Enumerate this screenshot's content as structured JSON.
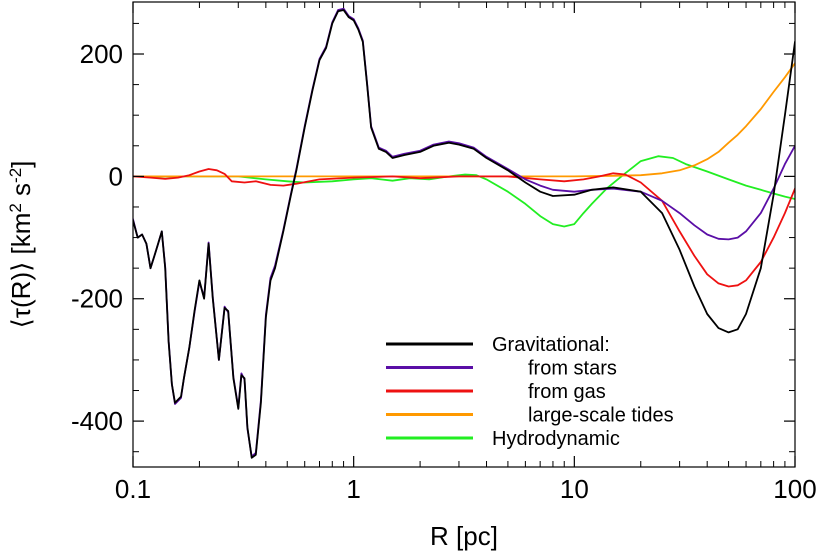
{
  "chart_data": {
    "type": "line",
    "xscale": "log",
    "xlim": [
      0.1,
      100
    ],
    "ylim": [
      -475,
      285
    ],
    "xlabel": "R [pc]",
    "ylabel_parts": [
      "⟨τ(R)⟩ [km",
      "2",
      " s",
      "-2",
      "]"
    ],
    "ylabel": "⟨τ(R)⟩ [km2 s-2]",
    "xticks": [
      {
        "value": 0.1,
        "label": "0.1"
      },
      {
        "value": 1,
        "label": "1"
      },
      {
        "value": 10,
        "label": "10"
      },
      {
        "value": 100,
        "label": "100"
      }
    ],
    "yticks": [
      {
        "value": -400,
        "label": "-400"
      },
      {
        "value": -200,
        "label": "-200"
      },
      {
        "value": 0,
        "label": "0"
      },
      {
        "value": 200,
        "label": "200"
      }
    ],
    "grid": false,
    "legend_position": "bottom-right",
    "series": [
      {
        "name": "Gravitational:",
        "color": "#000000",
        "points": [
          [
            0.1,
            -72
          ],
          [
            0.105,
            -100
          ],
          [
            0.11,
            -95
          ],
          [
            0.115,
            -110
          ],
          [
            0.12,
            -150
          ],
          [
            0.125,
            -130
          ],
          [
            0.13,
            -110
          ],
          [
            0.135,
            -90
          ],
          [
            0.14,
            -150
          ],
          [
            0.145,
            -270
          ],
          [
            0.15,
            -340
          ],
          [
            0.155,
            -370
          ],
          [
            0.165,
            -360
          ],
          [
            0.17,
            -330
          ],
          [
            0.18,
            -280
          ],
          [
            0.19,
            -220
          ],
          [
            0.2,
            -170
          ],
          [
            0.21,
            -200
          ],
          [
            0.22,
            -110
          ],
          [
            0.23,
            -200
          ],
          [
            0.245,
            -300
          ],
          [
            0.26,
            -215
          ],
          [
            0.27,
            -220
          ],
          [
            0.285,
            -330
          ],
          [
            0.3,
            -380
          ],
          [
            0.31,
            -325
          ],
          [
            0.32,
            -330
          ],
          [
            0.33,
            -410
          ],
          [
            0.345,
            -460
          ],
          [
            0.36,
            -455
          ],
          [
            0.38,
            -370
          ],
          [
            0.4,
            -230
          ],
          [
            0.42,
            -170
          ],
          [
            0.44,
            -150
          ],
          [
            0.48,
            -90
          ],
          [
            0.52,
            -30
          ],
          [
            0.55,
            10
          ],
          [
            0.6,
            80
          ],
          [
            0.65,
            140
          ],
          [
            0.7,
            190
          ],
          [
            0.75,
            210
          ],
          [
            0.8,
            250
          ],
          [
            0.85,
            270
          ],
          [
            0.9,
            272
          ],
          [
            0.95,
            260
          ],
          [
            1.0,
            255
          ],
          [
            1.05,
            240
          ],
          [
            1.1,
            220
          ],
          [
            1.15,
            150
          ],
          [
            1.2,
            80
          ],
          [
            1.3,
            45
          ],
          [
            1.4,
            40
          ],
          [
            1.5,
            30
          ],
          [
            1.7,
            35
          ],
          [
            2.0,
            40
          ],
          [
            2.3,
            50
          ],
          [
            2.7,
            55
          ],
          [
            3.0,
            52
          ],
          [
            3.5,
            45
          ],
          [
            4.0,
            30
          ],
          [
            5.0,
            10
          ],
          [
            6.0,
            -10
          ],
          [
            7.0,
            -25
          ],
          [
            8.0,
            -32
          ],
          [
            10.0,
            -30
          ],
          [
            12.0,
            -22
          ],
          [
            15.0,
            -18
          ],
          [
            20.0,
            -25
          ],
          [
            25.0,
            -60
          ],
          [
            30.0,
            -120
          ],
          [
            35.0,
            -180
          ],
          [
            40.0,
            -225
          ],
          [
            45.0,
            -248
          ],
          [
            50.0,
            -255
          ],
          [
            55.0,
            -250
          ],
          [
            60.0,
            -225
          ],
          [
            70.0,
            -150
          ],
          [
            80.0,
            -30
          ],
          [
            90.0,
            100
          ],
          [
            100.0,
            220
          ]
        ]
      },
      {
        "name": "from stars",
        "color": "#5a0ea6",
        "points": [
          [
            0.1,
            -70
          ],
          [
            0.105,
            -100
          ],
          [
            0.11,
            -95
          ],
          [
            0.115,
            -110
          ],
          [
            0.12,
            -150
          ],
          [
            0.125,
            -130
          ],
          [
            0.13,
            -110
          ],
          [
            0.135,
            -90
          ],
          [
            0.14,
            -148
          ],
          [
            0.145,
            -268
          ],
          [
            0.15,
            -340
          ],
          [
            0.155,
            -372
          ],
          [
            0.165,
            -362
          ],
          [
            0.17,
            -330
          ],
          [
            0.18,
            -280
          ],
          [
            0.19,
            -222
          ],
          [
            0.2,
            -172
          ],
          [
            0.21,
            -198
          ],
          [
            0.22,
            -108
          ],
          [
            0.23,
            -198
          ],
          [
            0.245,
            -300
          ],
          [
            0.26,
            -213
          ],
          [
            0.27,
            -222
          ],
          [
            0.285,
            -328
          ],
          [
            0.3,
            -378
          ],
          [
            0.31,
            -322
          ],
          [
            0.32,
            -332
          ],
          [
            0.33,
            -412
          ],
          [
            0.345,
            -458
          ],
          [
            0.36,
            -452
          ],
          [
            0.38,
            -366
          ],
          [
            0.4,
            -226
          ],
          [
            0.42,
            -166
          ],
          [
            0.44,
            -146
          ],
          [
            0.48,
            -88
          ],
          [
            0.52,
            -28
          ],
          [
            0.55,
            12
          ],
          [
            0.6,
            82
          ],
          [
            0.65,
            142
          ],
          [
            0.7,
            192
          ],
          [
            0.75,
            212
          ],
          [
            0.8,
            252
          ],
          [
            0.85,
            272
          ],
          [
            0.9,
            274
          ],
          [
            0.95,
            262
          ],
          [
            1.0,
            257
          ],
          [
            1.05,
            242
          ],
          [
            1.1,
            222
          ],
          [
            1.15,
            152
          ],
          [
            1.2,
            82
          ],
          [
            1.3,
            47
          ],
          [
            1.4,
            42
          ],
          [
            1.5,
            32
          ],
          [
            1.7,
            37
          ],
          [
            2.0,
            42
          ],
          [
            2.3,
            52
          ],
          [
            2.7,
            57
          ],
          [
            3.0,
            54
          ],
          [
            3.5,
            47
          ],
          [
            4.0,
            32
          ],
          [
            5.0,
            12
          ],
          [
            6.0,
            -5
          ],
          [
            7.0,
            -15
          ],
          [
            8.0,
            -22
          ],
          [
            10.0,
            -25
          ],
          [
            12.0,
            -22
          ],
          [
            15.0,
            -20
          ],
          [
            20.0,
            -25
          ],
          [
            25.0,
            -40
          ],
          [
            30.0,
            -60
          ],
          [
            35.0,
            -80
          ],
          [
            40.0,
            -95
          ],
          [
            45.0,
            -102
          ],
          [
            50.0,
            -103
          ],
          [
            55.0,
            -100
          ],
          [
            60.0,
            -90
          ],
          [
            70.0,
            -60
          ],
          [
            80.0,
            -20
          ],
          [
            90.0,
            20
          ],
          [
            100.0,
            50
          ]
        ]
      },
      {
        "name": "from gas",
        "color": "#ee1111",
        "points": [
          [
            0.1,
            0
          ],
          [
            0.12,
            -2
          ],
          [
            0.14,
            -4
          ],
          [
            0.16,
            -2
          ],
          [
            0.18,
            2
          ],
          [
            0.2,
            8
          ],
          [
            0.22,
            12
          ],
          [
            0.24,
            10
          ],
          [
            0.26,
            4
          ],
          [
            0.28,
            -8
          ],
          [
            0.32,
            -10
          ],
          [
            0.36,
            -8
          ],
          [
            0.42,
            -14
          ],
          [
            0.48,
            -15
          ],
          [
            0.55,
            -12
          ],
          [
            0.7,
            -5
          ],
          [
            1.0,
            -2
          ],
          [
            1.5,
            0
          ],
          [
            2.0,
            -3
          ],
          [
            3.0,
            0
          ],
          [
            5.0,
            0
          ],
          [
            7.0,
            -5
          ],
          [
            9.0,
            -8
          ],
          [
            11.0,
            -5
          ],
          [
            13.0,
            0
          ],
          [
            15.0,
            5
          ],
          [
            17.0,
            3
          ],
          [
            20.0,
            -10
          ],
          [
            25.0,
            -40
          ],
          [
            30.0,
            -90
          ],
          [
            35.0,
            -130
          ],
          [
            40.0,
            -160
          ],
          [
            45.0,
            -175
          ],
          [
            50.0,
            -180
          ],
          [
            55.0,
            -178
          ],
          [
            60.0,
            -170
          ],
          [
            70.0,
            -140
          ],
          [
            80.0,
            -100
          ],
          [
            90.0,
            -60
          ],
          [
            100.0,
            -20
          ]
        ]
      },
      {
        "name": "large-scale tides",
        "color": "#ff9900",
        "points": [
          [
            0.1,
            0
          ],
          [
            1.0,
            0
          ],
          [
            5.0,
            0
          ],
          [
            10.0,
            0
          ],
          [
            15.0,
            1
          ],
          [
            20.0,
            2
          ],
          [
            25.0,
            5
          ],
          [
            30.0,
            10
          ],
          [
            35.0,
            18
          ],
          [
            40.0,
            28
          ],
          [
            45.0,
            40
          ],
          [
            50.0,
            55
          ],
          [
            55.0,
            68
          ],
          [
            60.0,
            82
          ],
          [
            70.0,
            110
          ],
          [
            80.0,
            138
          ],
          [
            90.0,
            162
          ],
          [
            100.0,
            185
          ]
        ]
      },
      {
        "name": "Hydrodynamic",
        "color": "#22ee22",
        "points": [
          [
            0.1,
            0
          ],
          [
            0.3,
            0
          ],
          [
            0.4,
            -5
          ],
          [
            0.5,
            -8
          ],
          [
            0.6,
            -10
          ],
          [
            0.8,
            -8
          ],
          [
            1.0,
            -5
          ],
          [
            1.2,
            -3
          ],
          [
            1.5,
            -7
          ],
          [
            1.8,
            -3
          ],
          [
            2.2,
            -5
          ],
          [
            2.7,
            0
          ],
          [
            3.2,
            3
          ],
          [
            3.6,
            2
          ],
          [
            4.0,
            -5
          ],
          [
            5.0,
            -25
          ],
          [
            6.0,
            -45
          ],
          [
            7.0,
            -65
          ],
          [
            8.0,
            -78
          ],
          [
            9.0,
            -82
          ],
          [
            10.0,
            -78
          ],
          [
            11.0,
            -60
          ],
          [
            12.0,
            -45
          ],
          [
            14.0,
            -20
          ],
          [
            17.0,
            5
          ],
          [
            20.0,
            25
          ],
          [
            24.0,
            33
          ],
          [
            28.0,
            30
          ],
          [
            32.0,
            20
          ],
          [
            40.0,
            8
          ],
          [
            50.0,
            -5
          ],
          [
            60.0,
            -15
          ],
          [
            70.0,
            -22
          ],
          [
            80.0,
            -28
          ],
          [
            90.0,
            -33
          ],
          [
            100.0,
            -37
          ]
        ]
      }
    ]
  }
}
